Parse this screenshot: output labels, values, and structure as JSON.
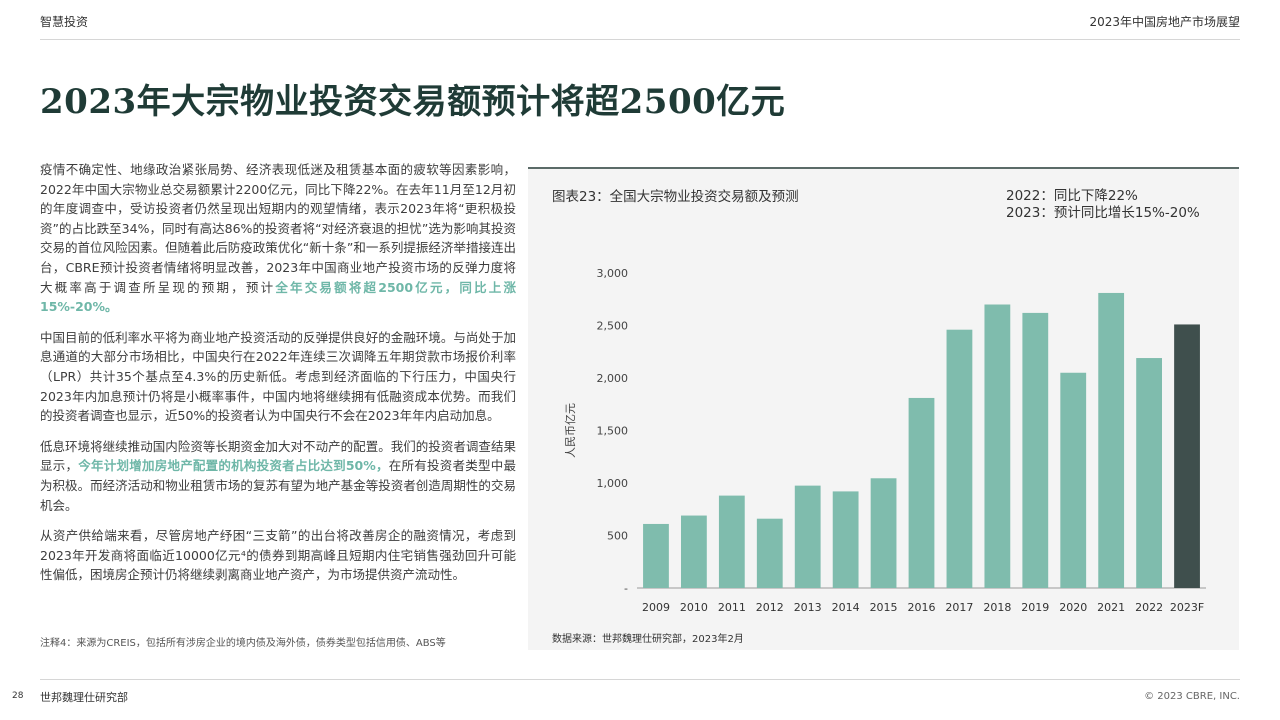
{
  "header": {
    "left": "智慧投资",
    "right": "2023年中国房地产市场展望"
  },
  "title": "2023年大宗物业投资交易额预计将超2500亿元",
  "paragraphs": [
    [
      {
        "t": "疫情不确定性、地缘政治紧张局势、经济表现低迷及租赁基本面的疲软等因素影响，2022年中国大宗物业总交易额累计2200亿元，同比下降22%。在去年11月至12月初的年度调查中，受访投资者仍然呈现出短期内的观望情绪，表示2023年将“更积极投资”的占比跌至34%，同时有高达86%的投资者将“对经济衰退的担忧”选为影响其投资交易的首位风险因素。但随着此后防疫政策优化“新十条”和一系列提振经济举措接连出台，CBRE预计投资者情绪将明显改善，2023年中国商业地产投资市场的反弹力度将大概率高于调查所呈现的预期，预计"
      },
      {
        "t": "全年交易额将超2500亿元，同比上涨15%-20%。",
        "hl": true
      }
    ],
    [
      {
        "t": "中国目前的低利率水平将为商业地产投资活动的反弹提供良好的金融环境。与尚处于加息通道的大部分市场相比，中国央行在2022年连续三次调降五年期贷款市场报价利率（LPR）共计35个基点至4.3%的历史新低。考虑到经济面临的下行压力，中国央行2023年内加息预计仍将是小概率事件，中国内地将继续拥有低融资成本优势。而我们的投资者调查也显示，近50%的投资者认为中国央行不会在2023年年内启动加息。"
      }
    ],
    [
      {
        "t": "低息环境将继续推动国内险资等长期资金加大对不动产的配置。我们的投资者调查结果显示，"
      },
      {
        "t": "今年计划增加房地产配置的机构投资者占比达到50%，",
        "hl": true
      },
      {
        "t": "在所有投资者类型中最为积极。而经济活动和物业租赁市场的复苏有望为地产基金等投资者创造周期性的交易机会。"
      }
    ],
    [
      {
        "t": "从资产供给端来看，尽管房地产纾困“三支箭”的出台将改善房企的融资情况，考虑到2023年开发商将面临近10000亿元⁴的债券到期高峰且短期内住宅销售强劲回升可能性偏低，困境房企预计仍将继续剥离商业地产资产，为市场提供资产流动性。"
      }
    ]
  ],
  "note": "注释4：来源为CREIS，包括所有涉房企业的境内债及海外债，债券类型包括信用债、ABS等",
  "chart": {
    "title": "图表23：全国大宗物业投资交易额及预测",
    "annotations": [
      "2022：同比下降22%",
      "2023：预计同比增长15%-20%"
    ],
    "source": "数据来源：世邦魏理仕研究部，2023年2月"
  },
  "chart_data": {
    "type": "bar",
    "categories": [
      "2009",
      "2010",
      "2011",
      "2012",
      "2013",
      "2014",
      "2015",
      "2016",
      "2017",
      "2018",
      "2019",
      "2020",
      "2021",
      "2022",
      "2023F"
    ],
    "values": [
      610,
      690,
      880,
      660,
      975,
      920,
      1045,
      1810,
      2460,
      2700,
      2620,
      2050,
      2810,
      2190,
      2510
    ],
    "ylabel": "人民币亿元",
    "ylim": [
      0,
      3000
    ],
    "yticks": [
      0,
      500,
      1000,
      1500,
      2000,
      2500,
      3000
    ],
    "ytick_labels": [
      "-",
      "500",
      "1,000",
      "1,500",
      "2,000",
      "2,500",
      "3,000"
    ],
    "colors": {
      "actual": "#7fbcad",
      "forecast": "#3f4f4d"
    }
  },
  "footer": {
    "page": "28",
    "left": "世邦魏理仕研究部",
    "right": "© 2023 CBRE, INC."
  }
}
